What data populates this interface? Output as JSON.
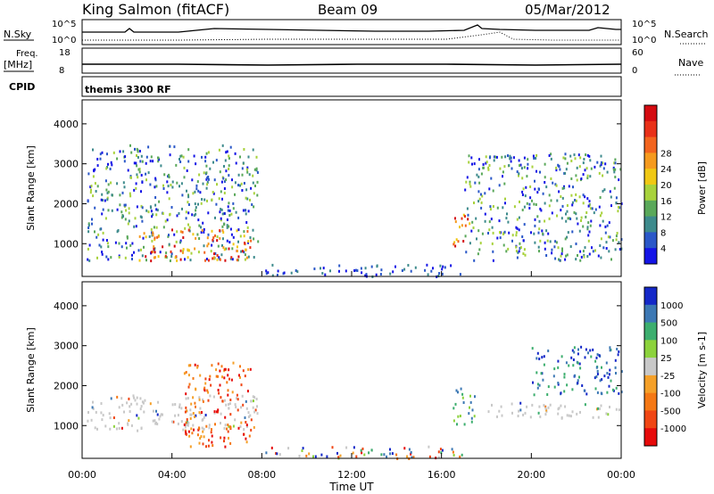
{
  "header": {
    "station": "King Salmon (fitACF)",
    "beam": "Beam 09",
    "date": "05/Mar/2012"
  },
  "info_panels": {
    "nsky_label": "N.Sky",
    "nsky_ticks": [
      "10^5",
      "10^0"
    ],
    "nsearch_label": "N.Search",
    "nsearch_ticks": [
      "10^5",
      "10^0"
    ],
    "freq_label": "Freq.",
    "freq_unit": "[MHz]",
    "freq_ticks": [
      "18",
      "8"
    ],
    "nave_label": "Nave",
    "nave_ticks": [
      "60",
      "0"
    ],
    "cpid_label": "CPID",
    "cpid_value": "themis 3300 RF"
  },
  "chart_data": [
    {
      "type": "heatmap",
      "title": "",
      "xlabel": "Time UT",
      "ylabel": "Slant Range [km]",
      "x_ticks": [
        "00:00",
        "04:00",
        "08:00",
        "12:00",
        "16:00",
        "20:00",
        "00:00"
      ],
      "y_ticks": [
        1000,
        2000,
        3000,
        4000
      ],
      "x_range_hours": [
        0,
        24
      ],
      "ylim": [
        180,
        4600
      ],
      "colorbar": {
        "label": "Power [dB]",
        "ticks": [
          4,
          8,
          12,
          16,
          20,
          24,
          28
        ],
        "colors": [
          "#1414e6",
          "#2a57c8",
          "#3d8a8c",
          "#5aa85a",
          "#a8d23c",
          "#f0c814",
          "#f59a1e",
          "#f2641e",
          "#e83018",
          "#d40a10"
        ]
      },
      "regions": [
        {
          "t": [
            0.2,
            7.8
          ],
          "r": [
            600,
            3500
          ],
          "level": "low-mid"
        },
        {
          "t": [
            2.5,
            7.5
          ],
          "r": [
            600,
            1400
          ],
          "level": "high"
        },
        {
          "t": [
            8.0,
            17.0
          ],
          "r": [
            200,
            500
          ],
          "level": "low"
        },
        {
          "t": [
            16.5,
            17.3
          ],
          "r": [
            900,
            1800
          ],
          "level": "high"
        },
        {
          "t": [
            17.0,
            24.0
          ],
          "r": [
            600,
            3300
          ],
          "level": "low-mid"
        }
      ]
    },
    {
      "type": "heatmap",
      "title": "",
      "xlabel": "Time UT",
      "ylabel": "Slant Range [km]",
      "x_ticks": [
        "00:00",
        "04:00",
        "08:00",
        "12:00",
        "16:00",
        "20:00",
        "00:00"
      ],
      "y_ticks": [
        1000,
        2000,
        3000,
        4000
      ],
      "x_range_hours": [
        0,
        24
      ],
      "ylim": [
        180,
        4600
      ],
      "colorbar": {
        "label": "Velocity [m s-1]",
        "ticks": [
          1000,
          500,
          100,
          25,
          -25,
          -100,
          -500,
          -1000
        ],
        "colors": [
          "#1428c8",
          "#3c78b4",
          "#3cae6e",
          "#8cd23c",
          "#c8c8c8",
          "#f5a028",
          "#f57814",
          "#f04614",
          "#e60a0a"
        ]
      },
      "regions": [
        {
          "t": [
            0.2,
            7.8
          ],
          "r": [
            900,
            1800
          ],
          "level": "ground-scatter"
        },
        {
          "t": [
            4.5,
            7.5
          ],
          "r": [
            500,
            2600
          ],
          "level": "negative"
        },
        {
          "t": [
            8.0,
            17.0
          ],
          "r": [
            200,
            500
          ],
          "level": "mixed"
        },
        {
          "t": [
            16.5,
            17.5
          ],
          "r": [
            1000,
            2000
          ],
          "level": "positive"
        },
        {
          "t": [
            18.0,
            24.0
          ],
          "r": [
            1200,
            1600
          ],
          "level": "ground-scatter"
        },
        {
          "t": [
            20.0,
            24.0
          ],
          "r": [
            1800,
            3000
          ],
          "level": "positive-high"
        }
      ]
    }
  ]
}
